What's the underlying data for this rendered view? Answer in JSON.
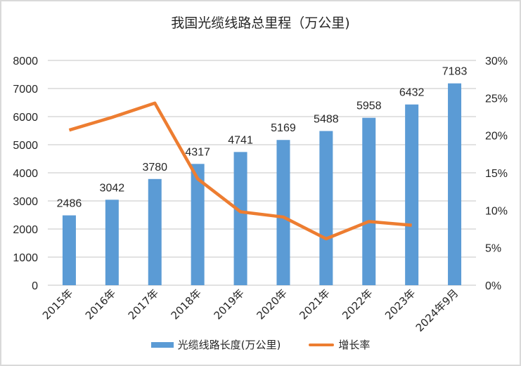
{
  "chart_data": {
    "type": "bar",
    "title": "我国光缆线路总里程（万公里)",
    "categories": [
      "2015年",
      "2016年",
      "2017年",
      "2018年",
      "2019年",
      "2020年",
      "2021年",
      "2022年",
      "2023年",
      "2024年9月"
    ],
    "series": [
      {
        "name": "光缆线路长度(万公里)",
        "type": "bar",
        "axis": "left",
        "color": "#5b9bd5",
        "values": [
          2486,
          3042,
          3780,
          4317,
          4741,
          5169,
          5488,
          5958,
          6432,
          7183
        ]
      },
      {
        "name": "增长率",
        "type": "line",
        "axis": "right",
        "color": "#ed7d31",
        "values": [
          20.7,
          22.4,
          24.3,
          14.2,
          9.8,
          9.1,
          6.2,
          8.5,
          8.0,
          null
        ]
      }
    ],
    "ylim_left": [
      0,
      8000
    ],
    "yticks_left": [
      "0",
      "1000",
      "2000",
      "3000",
      "4000",
      "5000",
      "6000",
      "7000",
      "8000"
    ],
    "ylim_right": [
      0,
      30
    ],
    "yticks_right": [
      "0%",
      "5%",
      "10%",
      "15%",
      "20%",
      "25%",
      "30%"
    ],
    "grid": true,
    "legend_position": "bottom",
    "xlabel": "",
    "ylabel": ""
  }
}
